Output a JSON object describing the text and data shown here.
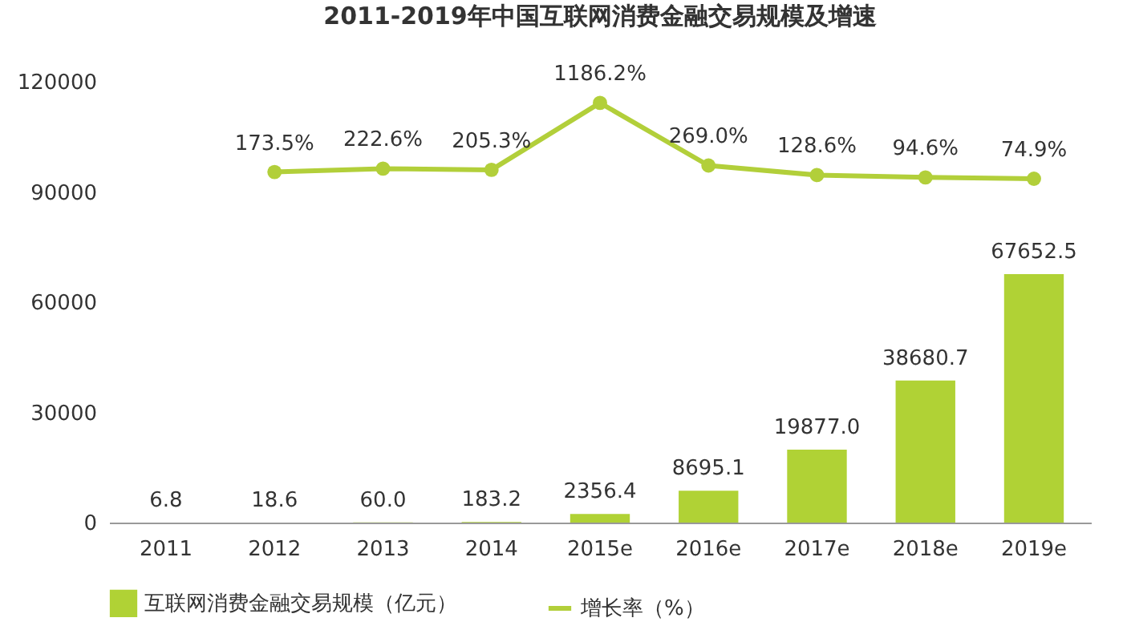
{
  "chart_data": {
    "type": "bar",
    "title": "2011-2019年中国互联网消费金融交易规模及增速",
    "categories": [
      "2011",
      "2012",
      "2013",
      "2014",
      "2015e",
      "2016e",
      "2017e",
      "2018e",
      "2019e"
    ],
    "series": [
      {
        "name": "互联网消费金融交易规模（亿元）",
        "color": "#b0d235",
        "values": [
          6.8,
          18.6,
          60.0,
          183.2,
          2356.4,
          8695.1,
          19877.0,
          38680.7,
          67652.5
        ],
        "value_labels": [
          "6.8",
          "18.6",
          "60.0",
          "183.2",
          "2356.4",
          "8695.1",
          "19877.0",
          "38680.7",
          "67652.5"
        ]
      },
      {
        "name": "增长率（%）",
        "type": "line",
        "axis": "y2",
        "color": "#b2cf3a",
        "values": [
          null,
          173.5,
          222.6,
          205.3,
          1186.2,
          269.0,
          128.6,
          94.6,
          74.9
        ],
        "value_labels": [
          null,
          "173.5%",
          "222.6%",
          "205.3%",
          "1186.2%",
          "269.0%",
          "128.6%",
          "94.6%",
          "74.9%"
        ]
      }
    ],
    "ylim": [
      0,
      120000
    ],
    "yticks": [
      0,
      30000,
      60000,
      90000,
      120000
    ],
    "grid": false,
    "legend": "bottom",
    "marker": "circle",
    "line_style": "solid"
  }
}
